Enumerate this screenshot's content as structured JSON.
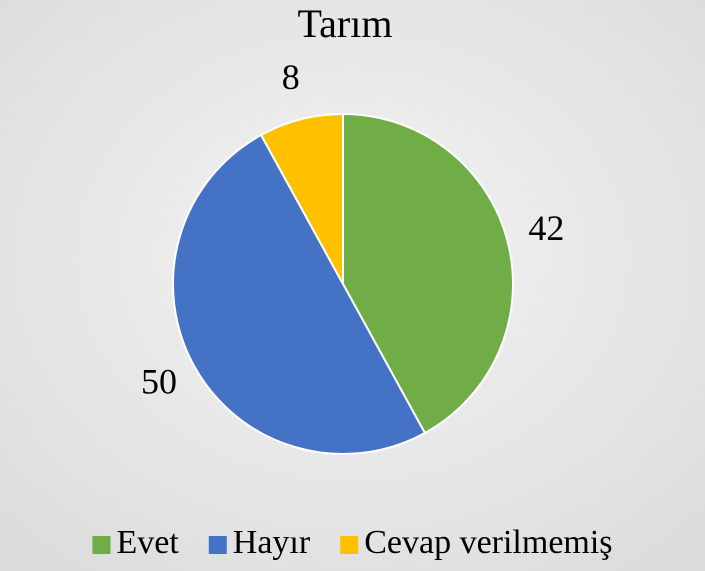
{
  "chart_data": {
    "type": "pie",
    "title": "Tarım",
    "categories": [
      "Evet",
      "Hayır",
      "Cevap verilmemiş"
    ],
    "values": [
      42,
      50,
      8
    ],
    "colors": [
      "#70ad47",
      "#4472c4",
      "#ffc000"
    ],
    "legend": "bottom"
  }
}
